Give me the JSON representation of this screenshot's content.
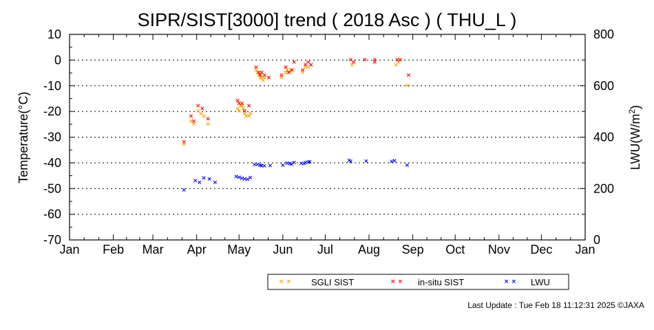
{
  "chart_data": {
    "type": "scatter",
    "title": "SIPR/SIST[3000] trend ( 2018 Asc ) ( THU_L )",
    "ylabel_left": "Temperature(°C)",
    "ylabel_right_main": "LWU(W/m",
    "ylabel_right_sup": "2",
    "ylabel_right_end": ")",
    "x_ticks": [
      "Jan",
      "Feb",
      "Mar",
      "Apr",
      "May",
      "Jun",
      "Jul",
      "Aug",
      "Sep",
      "Oct",
      "Nov",
      "Dec",
      "Jan"
    ],
    "y_left_ticks": [
      "10",
      "0",
      "-10",
      "-20",
      "-30",
      "-40",
      "-50",
      "-60",
      "-70"
    ],
    "y_right_ticks": [
      "800",
      "600",
      "400",
      "200",
      "0"
    ],
    "ylim_left": [
      -70,
      10
    ],
    "ylim_right": [
      0,
      800
    ],
    "x_unit": "day of year 2018",
    "xlim": [
      0,
      365
    ],
    "grid": "horizontal dotted",
    "colors": {
      "sgli": "#ffa500",
      "insitu": "#ff0000",
      "lwu": "#0000ff"
    },
    "series": [
      {
        "name": "SGLI SIST",
        "marker": "×",
        "points": [
          [
            81,
            -33
          ],
          [
            86,
            -24
          ],
          [
            88,
            -25
          ],
          [
            91,
            -20
          ],
          [
            93,
            -21
          ],
          [
            95,
            -22
          ],
          [
            98,
            -25
          ],
          [
            119,
            -19
          ],
          [
            120,
            -20
          ],
          [
            121,
            -18
          ],
          [
            122,
            -18
          ],
          [
            123,
            -19
          ],
          [
            124,
            -21
          ],
          [
            125,
            -22
          ],
          [
            127,
            -22
          ],
          [
            128,
            -21
          ],
          [
            132,
            -4
          ],
          [
            133,
            -5
          ],
          [
            134,
            -6
          ],
          [
            135,
            -7
          ],
          [
            136,
            -7
          ],
          [
            137,
            -8
          ],
          [
            138,
            -7
          ],
          [
            141,
            -7
          ],
          [
            150,
            -7
          ],
          [
            153,
            -5
          ],
          [
            154,
            -4
          ],
          [
            156,
            -5
          ],
          [
            158,
            -4
          ],
          [
            165,
            -5
          ],
          [
            167,
            -3
          ],
          [
            169,
            -3
          ],
          [
            171,
            -2
          ],
          [
            200,
            -2
          ],
          [
            216,
            -1
          ],
          [
            231,
            -2
          ],
          [
            233,
            -1
          ],
          [
            239,
            -10
          ]
        ]
      },
      {
        "name": "in-situ SIST",
        "marker": "×",
        "points": [
          [
            81,
            -32
          ],
          [
            86,
            -22
          ],
          [
            88,
            -24
          ],
          [
            91,
            -18
          ],
          [
            94,
            -19
          ],
          [
            98,
            -23
          ],
          [
            119,
            -16
          ],
          [
            120,
            -17
          ],
          [
            122,
            -17
          ],
          [
            124,
            -20
          ],
          [
            127,
            -18
          ],
          [
            132,
            -3
          ],
          [
            134,
            -5
          ],
          [
            135,
            -6
          ],
          [
            136,
            -5
          ],
          [
            138,
            -6
          ],
          [
            141,
            -7
          ],
          [
            150,
            -6
          ],
          [
            153,
            -3
          ],
          [
            155,
            -5
          ],
          [
            157,
            -4
          ],
          [
            159,
            -1
          ],
          [
            165,
            -4
          ],
          [
            167,
            -2
          ],
          [
            169,
            -1
          ],
          [
            171,
            -2
          ],
          [
            199,
            0
          ],
          [
            201,
            -1
          ],
          [
            209,
            0
          ],
          [
            216,
            0
          ],
          [
            216,
            -1
          ],
          [
            232,
            0
          ],
          [
            234,
            0
          ],
          [
            240,
            -6
          ]
        ]
      },
      {
        "name": "LWU",
        "marker": "×",
        "points": [
          [
            81,
            192
          ],
          [
            89,
            229
          ],
          [
            92,
            222
          ],
          [
            95,
            240
          ],
          [
            99,
            235
          ],
          [
            103,
            222
          ],
          [
            118,
            245
          ],
          [
            120,
            242
          ],
          [
            122,
            238
          ],
          [
            124,
            236
          ],
          [
            126,
            234
          ],
          [
            128,
            241
          ],
          [
            131,
            292
          ],
          [
            133,
            291
          ],
          [
            135,
            289
          ],
          [
            136,
            287
          ],
          [
            138,
            286
          ],
          [
            142,
            288
          ],
          [
            151,
            289
          ],
          [
            154,
            297
          ],
          [
            156,
            296
          ],
          [
            157,
            293
          ],
          [
            159,
            300
          ],
          [
            164,
            295
          ],
          [
            166,
            296
          ],
          [
            167,
            299
          ],
          [
            169,
            301
          ],
          [
            170,
            303
          ],
          [
            198,
            308
          ],
          [
            199,
            304
          ],
          [
            210,
            305
          ],
          [
            228,
            304
          ],
          [
            230,
            306
          ],
          [
            239,
            289
          ]
        ]
      }
    ]
  },
  "legend": {
    "items": [
      "SGLI SIST",
      "in-situ SIST",
      "LWU"
    ]
  },
  "footer": {
    "last_update": "Last Update : Tue Feb 18 11:12:31 2025  ©JAXA"
  }
}
